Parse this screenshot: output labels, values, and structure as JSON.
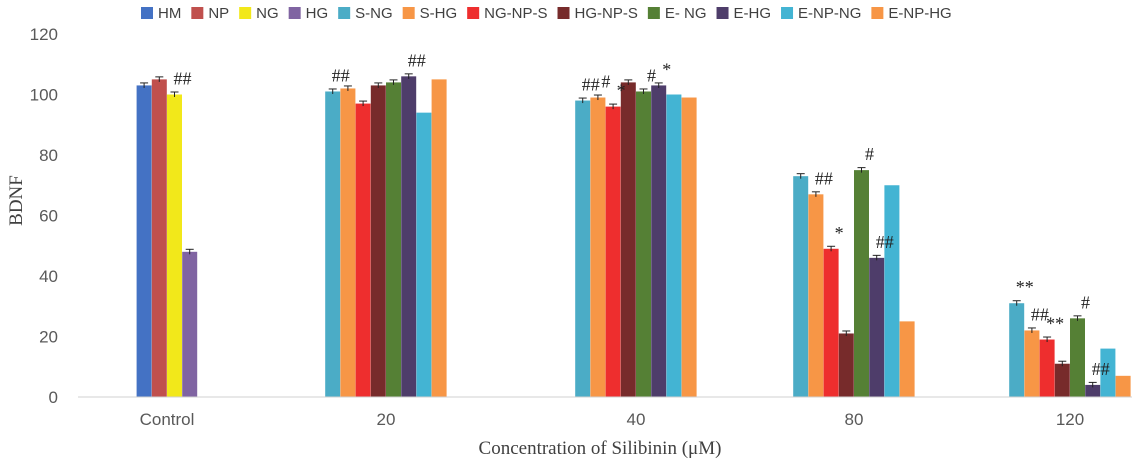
{
  "chart_data": {
    "type": "bar",
    "title": "",
    "xlabel": "Concentration of  Silibinin (μM)",
    "ylabel": "BDNF",
    "ylim": [
      0,
      120
    ],
    "yticks": [
      0,
      20,
      40,
      60,
      80,
      100,
      120
    ],
    "legend_position": "top",
    "categories": [
      "Control",
      "20",
      "40",
      "80",
      "120"
    ],
    "series": [
      {
        "name": "HM",
        "color": "#4472C4",
        "values": [
          103,
          null,
          null,
          null,
          null
        ]
      },
      {
        "name": "NP",
        "color": "#C0504D",
        "values": [
          105,
          null,
          null,
          null,
          null
        ]
      },
      {
        "name": "NG",
        "color": "#F2E81A",
        "values": [
          100,
          null,
          null,
          null,
          null
        ]
      },
      {
        "name": "HG",
        "color": "#8064A2",
        "values": [
          48,
          null,
          null,
          null,
          null
        ]
      },
      {
        "name": "S-NG",
        "color": "#4BACC6",
        "values": [
          null,
          101,
          98,
          73,
          31
        ]
      },
      {
        "name": "S-HG",
        "color": "#F79646",
        "values": [
          null,
          102,
          99,
          67,
          22
        ]
      },
      {
        "name": "NG-NP-S",
        "color": "#EE2E2E",
        "values": [
          null,
          97,
          96,
          49,
          19
        ]
      },
      {
        "name": "HG-NP-S",
        "color": "#772B2B",
        "values": [
          null,
          103,
          104,
          21,
          11
        ]
      },
      {
        "name": "E- NG",
        "color": "#558035",
        "values": [
          null,
          104,
          101,
          75,
          26
        ]
      },
      {
        "name": "E-HG",
        "color": "#4E3D6A",
        "values": [
          null,
          106,
          103,
          46,
          4
        ]
      },
      {
        "name": "E-NP-NG",
        "color": "#43B4D3",
        "values": [
          null,
          94,
          100,
          70,
          16
        ]
      },
      {
        "name": "E-NP-HG",
        "color": "#F79646",
        "values": [
          null,
          105,
          99,
          25,
          7
        ]
      }
    ],
    "annotations": [
      {
        "text": "##",
        "category": "Control",
        "series": "NG"
      },
      {
        "text": "##",
        "category": "20",
        "series": "S-NG"
      },
      {
        "text": "##",
        "category": "20",
        "series": "E-HG"
      },
      {
        "text": "##",
        "category": "40",
        "series": "S-NG"
      },
      {
        "text": "#",
        "category": "40",
        "series": "S-HG"
      },
      {
        "text": "*",
        "category": "40",
        "series": "NG-NP-S"
      },
      {
        "text": "#",
        "category": "40",
        "series": "E- NG"
      },
      {
        "text": "*",
        "category": "40",
        "series": "E-HG"
      },
      {
        "text": "##",
        "category": "80",
        "series": "S-HG"
      },
      {
        "text": "*",
        "category": "80",
        "series": "NG-NP-S"
      },
      {
        "text": "#",
        "category": "80",
        "series": "E- NG"
      },
      {
        "text": "##",
        "category": "80",
        "series": "E-HG"
      },
      {
        "text": "**",
        "category": "120",
        "series": "S-NG"
      },
      {
        "text": "##",
        "category": "120",
        "series": "S-HG"
      },
      {
        "text": "**",
        "category": "120",
        "series": "NG-NP-S"
      },
      {
        "text": "#",
        "category": "120",
        "series": "E- NG"
      },
      {
        "text": "##",
        "category": "120",
        "series": "E-HG"
      }
    ],
    "error_bars": true,
    "grid": false
  }
}
